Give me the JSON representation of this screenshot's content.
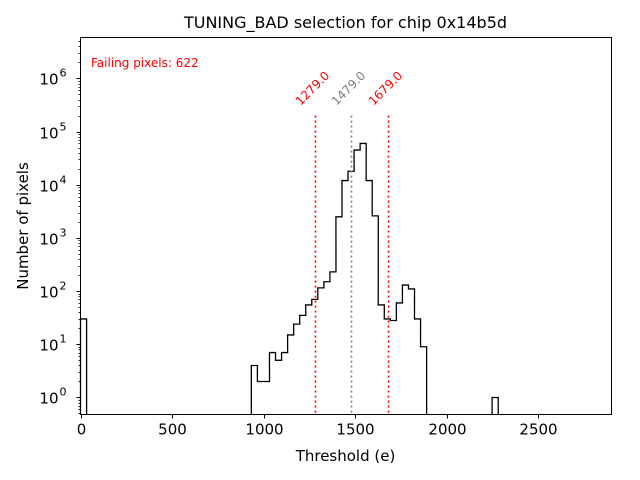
{
  "chart_data": {
    "type": "bar",
    "style": "step-histogram",
    "title": "TUNING_BAD selection for chip 0x14b5d",
    "xlabel": "Threshold (e)",
    "ylabel": "Number of pixels",
    "xlim": [
      0,
      2900
    ],
    "ylim_log10": [
      -0.32,
      6.77
    ],
    "yscale": "log",
    "grid": false,
    "xticks": [
      0,
      500,
      1000,
      1500,
      2000,
      2500
    ],
    "xtick_labels": [
      "0",
      "500",
      "1000",
      "1500",
      "2000",
      "2500"
    ],
    "yticks": [
      1,
      10,
      100,
      1000,
      10000,
      100000,
      1000000
    ],
    "ytick_labels": [
      {
        "base": "10",
        "exp": "0"
      },
      {
        "base": "10",
        "exp": "1"
      },
      {
        "base": "10",
        "exp": "2"
      },
      {
        "base": "10",
        "exp": "3"
      },
      {
        "base": "10",
        "exp": "4"
      },
      {
        "base": "10",
        "exp": "5"
      },
      {
        "base": "10",
        "exp": "6"
      }
    ],
    "bin_width": 33.3,
    "bins": [
      {
        "start": 0,
        "count": 30
      },
      {
        "start": 933,
        "count": 4
      },
      {
        "start": 966,
        "count": 2
      },
      {
        "start": 999,
        "count": 2
      },
      {
        "start": 1032,
        "count": 7
      },
      {
        "start": 1065,
        "count": 5
      },
      {
        "start": 1098,
        "count": 7
      },
      {
        "start": 1131,
        "count": 15
      },
      {
        "start": 1164,
        "count": 24
      },
      {
        "start": 1197,
        "count": 35
      },
      {
        "start": 1230,
        "count": 55
      },
      {
        "start": 1263,
        "count": 70
      },
      {
        "start": 1296,
        "count": 115
      },
      {
        "start": 1329,
        "count": 150
      },
      {
        "start": 1362,
        "count": 230
      },
      {
        "start": 1395,
        "count": 2500
      },
      {
        "start": 1428,
        "count": 12000
      },
      {
        "start": 1461,
        "count": 18000
      },
      {
        "start": 1494,
        "count": 45000
      },
      {
        "start": 1527,
        "count": 60000
      },
      {
        "start": 1560,
        "count": 12000
      },
      {
        "start": 1593,
        "count": 2600
      },
      {
        "start": 1626,
        "count": 55
      },
      {
        "start": 1659,
        "count": 30
      },
      {
        "start": 1692,
        "count": 28
      },
      {
        "start": 1725,
        "count": 60
      },
      {
        "start": 1758,
        "count": 130
      },
      {
        "start": 1791,
        "count": 110
      },
      {
        "start": 1824,
        "count": 30
      },
      {
        "start": 1857,
        "count": 9
      },
      {
        "start": 2248,
        "count": 1
      }
    ],
    "vlines": [
      {
        "x": 1279.0,
        "label": "1279.0",
        "color": "#ff0000",
        "style": "dotted"
      },
      {
        "x": 1479.0,
        "label": "1479.0",
        "color": "#808080",
        "style": "dotted"
      },
      {
        "x": 1679.0,
        "label": "1679.0",
        "color": "#ff0000",
        "style": "dotted"
      }
    ],
    "vline_top_value": 200000,
    "annotations": [
      {
        "text": "Failing pixels: 622",
        "position": "top-left",
        "color": "#ff0000"
      }
    ]
  }
}
